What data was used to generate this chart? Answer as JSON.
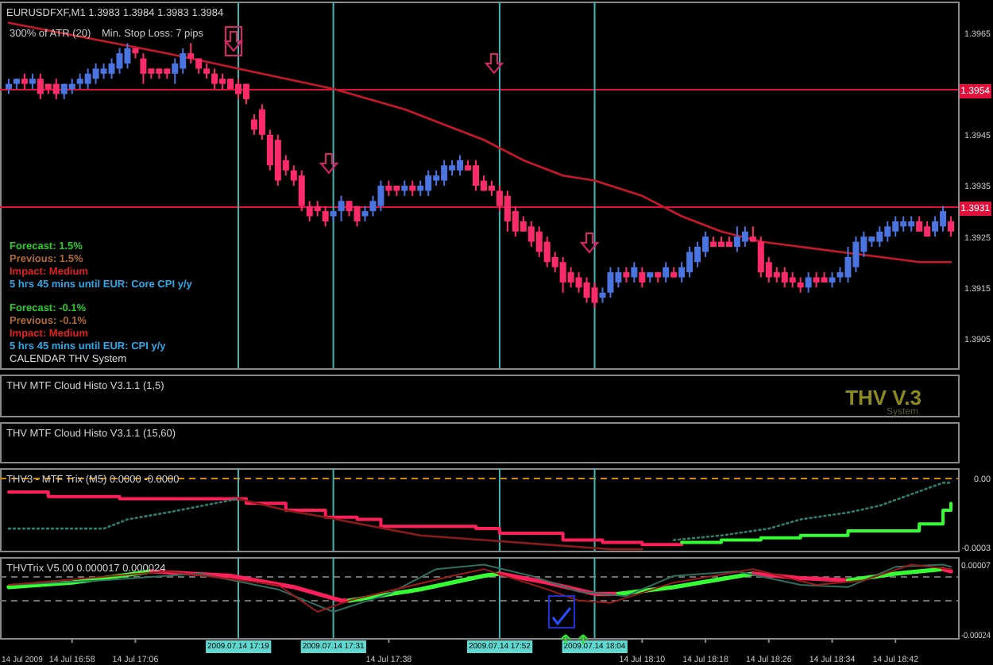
{
  "chart_data": [
    {
      "type": "candlestick",
      "title": "EURUSDFXF,M1  1.3983 1.3984 1.3983 1.3984",
      "tick_labels": "y",
      "annotations": [
        "300% of ATR (20)",
        "Min. Stop Loss:  7 pips",
        "Forecast: 1.5%",
        "Previous: 1.5%",
        "Impact: Medium",
        "5 hrs 45 mins until EUR: Core CPI y/y",
        "Forecast: -0.1%",
        "Previous: -0.1%",
        "Impact: Medium",
        "5 hrs 45 mins until EUR: CPI y/y",
        "CALENDAR THV System"
      ],
      "xlim": [
        "2009-07-14T16:49",
        "2009-07-14T18:50"
      ],
      "ylim": [
        1.3899,
        1.3971
      ],
      "yticks": [
        1.3965,
        1.3945,
        1.3935,
        1.3925,
        1.3915,
        1.3905
      ],
      "x": [
        "2009-07-14T16:50",
        "2009-07-14T16:51",
        "2009-07-14T16:52",
        "2009-07-14T16:53",
        "2009-07-14T16:54",
        "2009-07-14T16:55",
        "2009-07-14T16:56",
        "2009-07-14T16:57",
        "2009-07-14T16:58",
        "2009-07-14T16:59",
        "2009-07-14T17:00",
        "2009-07-14T17:01",
        "2009-07-14T17:02",
        "2009-07-14T17:03",
        "2009-07-14T17:04",
        "2009-07-14T17:05",
        "2009-07-14T17:06",
        "2009-07-14T17:07",
        "2009-07-14T17:08",
        "2009-07-14T17:09",
        "2009-07-14T17:10",
        "2009-07-14T17:11",
        "2009-07-14T17:12",
        "2009-07-14T17:13",
        "2009-07-14T17:14",
        "2009-07-14T17:15",
        "2009-07-14T17:16",
        "2009-07-14T17:17",
        "2009-07-14T17:18",
        "2009-07-14T17:19",
        "2009-07-14T17:20",
        "2009-07-14T17:21",
        "2009-07-14T17:22",
        "2009-07-14T17:23",
        "2009-07-14T17:24",
        "2009-07-14T17:25",
        "2009-07-14T17:26",
        "2009-07-14T17:27",
        "2009-07-14T17:28",
        "2009-07-14T17:29",
        "2009-07-14T17:30",
        "2009-07-14T17:31",
        "2009-07-14T17:32",
        "2009-07-14T17:33",
        "2009-07-14T17:34",
        "2009-07-14T17:35",
        "2009-07-14T17:36",
        "2009-07-14T17:37",
        "2009-07-14T17:38",
        "2009-07-14T17:39",
        "2009-07-14T17:40",
        "2009-07-14T17:41",
        "2009-07-14T17:42",
        "2009-07-14T17:43",
        "2009-07-14T17:44",
        "2009-07-14T17:45",
        "2009-07-14T17:46",
        "2009-07-14T17:47",
        "2009-07-14T17:48",
        "2009-07-14T17:49",
        "2009-07-14T17:50",
        "2009-07-14T17:51",
        "2009-07-14T17:52",
        "2009-07-14T17:53",
        "2009-07-14T17:54",
        "2009-07-14T17:55",
        "2009-07-14T17:56",
        "2009-07-14T17:57",
        "2009-07-14T17:58",
        "2009-07-14T17:59",
        "2009-07-14T18:00",
        "2009-07-14T18:01",
        "2009-07-14T18:02",
        "2009-07-14T18:03",
        "2009-07-14T18:04",
        "2009-07-14T18:05",
        "2009-07-14T18:06",
        "2009-07-14T18:07",
        "2009-07-14T18:08",
        "2009-07-14T18:09",
        "2009-07-14T18:10",
        "2009-07-14T18:11",
        "2009-07-14T18:12",
        "2009-07-14T18:13",
        "2009-07-14T18:14",
        "2009-07-14T18:15",
        "2009-07-14T18:16",
        "2009-07-14T18:17",
        "2009-07-14T18:18",
        "2009-07-14T18:19",
        "2009-07-14T18:20",
        "2009-07-14T18:21",
        "2009-07-14T18:22",
        "2009-07-14T18:23",
        "2009-07-14T18:24",
        "2009-07-14T18:25",
        "2009-07-14T18:26",
        "2009-07-14T18:27",
        "2009-07-14T18:28",
        "2009-07-14T18:29",
        "2009-07-14T18:30",
        "2009-07-14T18:31",
        "2009-07-14T18:32",
        "2009-07-14T18:33",
        "2009-07-14T18:34",
        "2009-07-14T18:35",
        "2009-07-14T18:36",
        "2009-07-14T18:37",
        "2009-07-14T18:38",
        "2009-07-14T18:39",
        "2009-07-14T18:40",
        "2009-07-14T18:41",
        "2009-07-14T18:42",
        "2009-07-14T18:43",
        "2009-07-14T18:44",
        "2009-07-14T18:45",
        "2009-07-14T18:46",
        "2009-07-14T18:47",
        "2009-07-14T18:48",
        "2009-07-14T18:49"
      ],
      "ohlc": [
        [
          1.3954,
          1.3956,
          1.3953,
          1.3955
        ],
        [
          1.3955,
          1.3956,
          1.3954,
          1.3956
        ],
        [
          1.3956,
          1.3957,
          1.3954,
          1.3955
        ],
        [
          1.3955,
          1.3957,
          1.3954,
          1.3956
        ],
        [
          1.3956,
          1.3957,
          1.3952,
          1.3953
        ],
        [
          1.3955,
          1.3955,
          1.3953,
          1.3954
        ],
        [
          1.3955,
          1.3956,
          1.3952,
          1.3953
        ],
        [
          1.3953,
          1.3955,
          1.3952,
          1.3955
        ],
        [
          1.3954,
          1.3956,
          1.3953,
          1.3955
        ],
        [
          1.3955,
          1.3957,
          1.3954,
          1.3956
        ],
        [
          1.3955,
          1.3958,
          1.3954,
          1.3957
        ],
        [
          1.3956,
          1.3959,
          1.3955,
          1.3958
        ],
        [
          1.3957,
          1.3959,
          1.3956,
          1.3958
        ],
        [
          1.3957,
          1.396,
          1.3956,
          1.3959
        ],
        [
          1.3958,
          1.3962,
          1.3957,
          1.3961
        ],
        [
          1.3959,
          1.3963,
          1.3958,
          1.3962
        ],
        [
          1.3962,
          1.3962,
          1.396,
          1.3961
        ],
        [
          1.396,
          1.3961,
          1.3955,
          1.3957
        ],
        [
          1.3958,
          1.3958,
          1.3956,
          1.3957
        ],
        [
          1.3958,
          1.3958,
          1.3956,
          1.3957
        ],
        [
          1.3958,
          1.3958,
          1.3956,
          1.3957
        ],
        [
          1.3957,
          1.396,
          1.3955,
          1.3959
        ],
        [
          1.3958,
          1.3962,
          1.3957,
          1.3961
        ],
        [
          1.3961,
          1.3963,
          1.3959,
          1.396
        ],
        [
          1.396,
          1.396,
          1.3957,
          1.3958
        ],
        [
          1.3958,
          1.3959,
          1.3956,
          1.3957
        ],
        [
          1.3957,
          1.3958,
          1.3954,
          1.3955
        ],
        [
          1.3956,
          1.3957,
          1.3954,
          1.3955
        ],
        [
          1.3956,
          1.3956,
          1.3954,
          1.3954
        ],
        [
          1.3955,
          1.3956,
          1.3952,
          1.3953
        ],
        [
          1.3955,
          1.3955,
          1.3951,
          1.3952
        ],
        [
          1.3948,
          1.3949,
          1.3945,
          1.3946
        ],
        [
          1.395,
          1.3951,
          1.3944,
          1.3945
        ],
        [
          1.3945,
          1.3946,
          1.3938,
          1.3939
        ],
        [
          1.3944,
          1.3945,
          1.3935,
          1.3936
        ],
        [
          1.394,
          1.3941,
          1.3937,
          1.3938
        ],
        [
          1.3938,
          1.3939,
          1.3935,
          1.3936
        ],
        [
          1.3937,
          1.3938,
          1.393,
          1.3931
        ],
        [
          1.3931,
          1.3932,
          1.3928,
          1.3929
        ],
        [
          1.3931,
          1.3932,
          1.3929,
          1.393
        ],
        [
          1.393,
          1.3931,
          1.3927,
          1.3928
        ],
        [
          1.3929,
          1.393,
          1.3928,
          1.393
        ],
        [
          1.393,
          1.3933,
          1.3928,
          1.3932
        ],
        [
          1.3932,
          1.3932,
          1.3929,
          1.393
        ],
        [
          1.3931,
          1.3931,
          1.3927,
          1.3928
        ],
        [
          1.3929,
          1.3931,
          1.3928,
          1.393
        ],
        [
          1.393,
          1.3933,
          1.3929,
          1.3932
        ],
        [
          1.3931,
          1.3936,
          1.393,
          1.3935
        ],
        [
          1.3935,
          1.3936,
          1.3933,
          1.3934
        ],
        [
          1.3935,
          1.3935,
          1.3933,
          1.3934
        ],
        [
          1.3934,
          1.3936,
          1.3933,
          1.3935
        ],
        [
          1.3935,
          1.3936,
          1.3933,
          1.3934
        ],
        [
          1.3934,
          1.3936,
          1.3933,
          1.3935
        ],
        [
          1.3934,
          1.3938,
          1.3933,
          1.3937
        ],
        [
          1.3936,
          1.3938,
          1.3935,
          1.3937
        ],
        [
          1.3936,
          1.394,
          1.3935,
          1.3939
        ],
        [
          1.3938,
          1.394,
          1.3937,
          1.3939
        ],
        [
          1.3938,
          1.3941,
          1.3937,
          1.394
        ],
        [
          1.3939,
          1.394,
          1.3938,
          1.3938
        ],
        [
          1.3939,
          1.394,
          1.3934,
          1.3935
        ],
        [
          1.3936,
          1.3937,
          1.3934,
          1.3934
        ],
        [
          1.3935,
          1.3936,
          1.3933,
          1.3934
        ],
        [
          1.3934,
          1.3935,
          1.393,
          1.3931
        ],
        [
          1.3933,
          1.3934,
          1.3926,
          1.3928
        ],
        [
          1.393,
          1.3931,
          1.3925,
          1.3926
        ],
        [
          1.3928,
          1.3929,
          1.3926,
          1.3926
        ],
        [
          1.3927,
          1.3928,
          1.3923,
          1.3924
        ],
        [
          1.3926,
          1.3927,
          1.3921,
          1.3922
        ],
        [
          1.3924,
          1.3925,
          1.3919,
          1.392
        ],
        [
          1.3921,
          1.3922,
          1.3918,
          1.3919
        ],
        [
          1.392,
          1.3921,
          1.3914,
          1.3916
        ],
        [
          1.3918,
          1.3919,
          1.3915,
          1.3916
        ],
        [
          1.3917,
          1.3918,
          1.3914,
          1.3915
        ],
        [
          1.3916,
          1.3917,
          1.3912,
          1.3913
        ],
        [
          1.3915,
          1.3916,
          1.3911,
          1.3912
        ],
        [
          1.3913,
          1.3915,
          1.3912,
          1.3914
        ],
        [
          1.3914,
          1.3919,
          1.3913,
          1.3918
        ],
        [
          1.3916,
          1.3919,
          1.3915,
          1.3918
        ],
        [
          1.3918,
          1.3919,
          1.3916,
          1.3917
        ],
        [
          1.3917,
          1.392,
          1.3916,
          1.3919
        ],
        [
          1.3918,
          1.3919,
          1.3915,
          1.3916
        ],
        [
          1.3917,
          1.3918,
          1.3916,
          1.3918
        ],
        [
          1.3918,
          1.3918,
          1.3916,
          1.3917
        ],
        [
          1.3917,
          1.392,
          1.3916,
          1.3919
        ],
        [
          1.3918,
          1.3919,
          1.3917,
          1.3917
        ],
        [
          1.3917,
          1.392,
          1.3916,
          1.3919
        ],
        [
          1.3918,
          1.3923,
          1.3917,
          1.3922
        ],
        [
          1.392,
          1.3924,
          1.3919,
          1.3923
        ],
        [
          1.3922,
          1.3926,
          1.3921,
          1.3925
        ],
        [
          1.3924,
          1.3925,
          1.3923,
          1.3923
        ],
        [
          1.3924,
          1.3925,
          1.3923,
          1.3923
        ],
        [
          1.3924,
          1.3925,
          1.3923,
          1.3923
        ],
        [
          1.3923,
          1.3927,
          1.3922,
          1.3925
        ],
        [
          1.3924,
          1.3927,
          1.3923,
          1.3926
        ],
        [
          1.3925,
          1.3927,
          1.3924,
          1.3924
        ],
        [
          1.3924,
          1.3925,
          1.3917,
          1.3918
        ],
        [
          1.392,
          1.3921,
          1.3916,
          1.3917
        ],
        [
          1.3918,
          1.3919,
          1.3916,
          1.3917
        ],
        [
          1.3918,
          1.3919,
          1.3915,
          1.3916
        ],
        [
          1.3917,
          1.3918,
          1.3915,
          1.3916
        ],
        [
          1.3916,
          1.3917,
          1.3914,
          1.3915
        ],
        [
          1.3915,
          1.3918,
          1.3914,
          1.3917
        ],
        [
          1.3917,
          1.3918,
          1.3915,
          1.3916
        ],
        [
          1.3917,
          1.3918,
          1.3916,
          1.3916
        ],
        [
          1.3916,
          1.3918,
          1.3915,
          1.3917
        ],
        [
          1.3917,
          1.3919,
          1.3916,
          1.3918
        ],
        [
          1.3917,
          1.3923,
          1.3916,
          1.3921
        ],
        [
          1.3919,
          1.3925,
          1.3918,
          1.3924
        ],
        [
          1.3922,
          1.3926,
          1.3921,
          1.3925
        ],
        [
          1.3924,
          1.3925,
          1.3923,
          1.3925
        ],
        [
          1.3924,
          1.3927,
          1.3923,
          1.3926
        ],
        [
          1.3925,
          1.3928,
          1.3924,
          1.3927
        ],
        [
          1.3926,
          1.3929,
          1.3925,
          1.3928
        ],
        [
          1.3927,
          1.3929,
          1.3926,
          1.3928
        ],
        [
          1.3927,
          1.3929,
          1.3926,
          1.3928
        ],
        [
          1.3928,
          1.3929,
          1.3926,
          1.3926
        ],
        [
          1.3927,
          1.3928,
          1.3925,
          1.3925
        ],
        [
          1.3926,
          1.3929,
          1.3925,
          1.3928
        ],
        [
          1.3927,
          1.3931,
          1.3926,
          1.393
        ],
        [
          1.3928,
          1.3929,
          1.3925,
          1.3926
        ]
      ],
      "series": [
        {
          "type": "line",
          "color": "#c8182a",
          "x": [
            "2009-07-14T16:50",
            "2009-07-14T17:00",
            "2009-07-14T17:10",
            "2009-07-14T17:19",
            "2009-07-14T17:25",
            "2009-07-14T17:31",
            "2009-07-14T17:40",
            "2009-07-14T17:50",
            "2009-07-14T17:55",
            "2009-07-14T18:00",
            "2009-07-14T18:04",
            "2009-07-14T18:10",
            "2009-07-14T18:15",
            "2009-07-14T18:20",
            "2009-07-14T18:25",
            "2009-07-14T18:30",
            "2009-07-14T18:35",
            "2009-07-14T18:40",
            "2009-07-14T18:45",
            "2009-07-14T18:49"
          ],
          "values": [
            1.3967,
            1.3964,
            1.3961,
            1.3958,
            1.3956,
            1.3954,
            1.395,
            1.3944,
            1.394,
            1.3937,
            1.3936,
            1.3933,
            1.3929,
            1.3926,
            1.3924,
            1.3923,
            1.3922,
            1.3921,
            1.392,
            1.392
          ]
        }
      ],
      "ref_lines": [
        {
          "axis": "y",
          "value": 1.3954,
          "label": "1.3954",
          "color": "#e0103a"
        },
        {
          "axis": "y",
          "value": 1.3931,
          "label": "1.3931",
          "color": "#e0103a"
        },
        {
          "axis": "x",
          "value": "2009-07-14T17:19",
          "color": "#3fb8b0"
        },
        {
          "axis": "x",
          "value": "2009-07-14T17:31",
          "color": "#3fb8b0"
        },
        {
          "axis": "x",
          "value": "2009-07-14T17:52",
          "color": "#3fb8b0"
        },
        {
          "axis": "x",
          "value": "2009-07-14T18:04",
          "color": "#3fb8b0"
        }
      ]
    },
    {
      "type": "other",
      "title": "THV MTF Cloud Histo V3.1.1 (1,5)",
      "annotations": [
        "THV V.3",
        "System"
      ]
    },
    {
      "type": "other",
      "title": "THV MTF Cloud Histo V3.1.1 (15,60)"
    },
    {
      "type": "line",
      "title": "THV3 - MTF Trix (M5) 0.0000 -0.0000",
      "tick_labels": "y",
      "xlim": [
        "2009-07-14T16:49",
        "2009-07-14T18:50"
      ],
      "ylim": [
        -0.00032,
        4e-05
      ],
      "yticks": [
        {
          "value": 0,
          "label": "0.00"
        },
        {
          "value": -0.0003,
          "label": "-0.0003"
        }
      ],
      "series": [
        {
          "type": "step",
          "color": "#ff1f5a",
          "x": [
            "2009-07-14T16:50",
            "2009-07-14T16:55",
            "2009-07-14T17:04",
            "2009-07-14T17:20",
            "2009-07-14T17:25",
            "2009-07-14T17:30",
            "2009-07-14T17:34",
            "2009-07-14T17:37",
            "2009-07-14T17:49",
            "2009-07-14T17:52",
            "2009-07-14T18:00",
            "2009-07-14T18:05",
            "2009-07-14T18:10",
            "2009-07-14T18:15"
          ],
          "values": [
            -6e-05,
            -8e-05,
            -9e-05,
            -0.00011,
            -0.00014,
            -0.00017,
            -0.00018,
            -0.00021,
            -0.00022,
            -0.00024,
            -0.00027,
            -0.00028,
            -0.00029,
            -0.00028
          ]
        },
        {
          "type": "step",
          "color": "#33ff33",
          "x": [
            "2009-07-14T18:15",
            "2009-07-14T18:20",
            "2009-07-14T18:25",
            "2009-07-14T18:30",
            "2009-07-14T18:36",
            "2009-07-14T18:45",
            "2009-07-14T18:48",
            "2009-07-14T18:49"
          ],
          "values": [
            -0.00028,
            -0.00027,
            -0.00026,
            -0.00025,
            -0.00023,
            -0.0002,
            -0.00014,
            -0.00011
          ]
        },
        {
          "type": "line",
          "color": "#2f7f6f",
          "line_style": "dotted",
          "x": [
            "2009-07-14T16:50",
            "2009-07-14T17:02",
            "2009-07-14T17:05",
            "2009-07-14T17:10",
            "2009-07-14T17:16",
            "2009-07-14T17:19",
            "2009-07-14T18:10",
            "2009-07-14T18:14",
            "2009-07-14T18:20",
            "2009-07-14T18:26",
            "2009-07-14T18:30",
            "2009-07-14T18:36",
            "2009-07-14T18:40",
            "2009-07-14T18:44",
            "2009-07-14T18:48",
            "2009-07-14T18:49"
          ],
          "values": [
            -0.00022,
            -0.00022,
            -0.00018,
            -0.00015,
            -0.00011,
            -9e-05,
            null,
            -0.00027,
            -0.00025,
            -0.00022,
            -0.00018,
            -0.00015,
            -0.00012,
            -7e-05,
            -2e-05,
            -2e-05
          ]
        },
        {
          "type": "line",
          "color": "#8b1a1a",
          "x": [
            "2009-07-14T17:19",
            "2009-07-14T17:25",
            "2009-07-14T17:30",
            "2009-07-14T17:42",
            "2009-07-14T17:50",
            "2009-07-14T17:58",
            "2009-07-14T18:06",
            "2009-07-14T18:10"
          ],
          "values": [
            -9e-05,
            -0.00014,
            -0.00017,
            -0.00025,
            -0.00027,
            -0.00029,
            -0.00031,
            -0.00031
          ]
        }
      ],
      "ref_lines": [
        {
          "axis": "y",
          "value": 0,
          "color": "#d08a00",
          "line_style": "dashed"
        },
        {
          "axis": "x",
          "value": "2009-07-14T17:19",
          "color": "#3fb8b0"
        },
        {
          "axis": "x",
          "value": "2009-07-14T17:31",
          "color": "#3fb8b0"
        },
        {
          "axis": "x",
          "value": "2009-07-14T17:52",
          "color": "#3fb8b0"
        },
        {
          "axis": "x",
          "value": "2009-07-14T18:04",
          "color": "#3fb8b0"
        }
      ]
    },
    {
      "type": "line",
      "title": "THVTrix V5.00 0.000017 0.000024",
      "annotations": [
        "14 Jul 2009"
      ],
      "xlim": [
        "2009-07-14T16:49",
        "2009-07-14T18:50"
      ],
      "ylim": [
        -0.00026,
        0.0001
      ],
      "yticks": [
        {
          "value": 7e-05,
          "label": "0.00007"
        },
        {
          "value": -0.00024,
          "label": "-0.00024"
        }
      ],
      "xticks": [
        {
          "value": "2009-07-14T16:58",
          "label": "14 Jul 16:58"
        },
        {
          "value": "2009-07-14T17:06",
          "label": "14 Jul 17:06"
        },
        {
          "value": "2009-07-14T17:38",
          "label": "14 Jul 17:38"
        },
        {
          "value": "2009-07-14T18:10",
          "label": "14 Jul 18:10"
        },
        {
          "value": "2009-07-14T18:18",
          "label": "14 Jul 18:18"
        },
        {
          "value": "2009-07-14T18:26",
          "label": "14 Jul 18:26"
        },
        {
          "value": "2009-07-14T18:34",
          "label": "14 Jul 18:34"
        },
        {
          "value": "2009-07-14T18:42",
          "label": "14 Jul 18:42"
        }
      ],
      "series": [
        {
          "type": "line",
          "color": "#33ff33",
          "x": [
            "2009-07-14T16:50",
            "2009-07-14T16:58",
            "2009-07-14T17:06",
            "2009-07-14T17:08"
          ],
          "values": [
            -3e-05,
            -1e-05,
            3e-05,
            4e-05
          ]
        },
        {
          "type": "line",
          "color": "#ff1f5a",
          "x": [
            "2009-07-14T17:08",
            "2009-07-14T17:18",
            "2009-07-14T17:26",
            "2009-07-14T17:32",
            "2009-07-14T17:33"
          ],
          "values": [
            4e-05,
            2e-05,
            -3e-05,
            -9e-05,
            -9e-05
          ]
        },
        {
          "type": "line",
          "color": "#33ff33",
          "x": [
            "2009-07-14T17:33",
            "2009-07-14T17:42",
            "2009-07-14T17:50",
            "2009-07-14T17:52"
          ],
          "values": [
            -9e-05,
            -4e-05,
            2e-05,
            3e-05
          ]
        },
        {
          "type": "line",
          "color": "#ff1f5a",
          "x": [
            "2009-07-14T17:52",
            "2009-07-14T17:58",
            "2009-07-14T18:04",
            "2009-07-14T18:07"
          ],
          "values": [
            3e-05,
            -1e-05,
            -6e-05,
            -6e-05
          ]
        },
        {
          "type": "line",
          "color": "#33ff33",
          "x": [
            "2009-07-14T18:07",
            "2009-07-14T18:14",
            "2009-07-14T18:24"
          ],
          "values": [
            -6e-05,
            -3e-05,
            3e-05
          ]
        },
        {
          "type": "line",
          "color": "#ff1f5a",
          "x": [
            "2009-07-14T18:24",
            "2009-07-14T18:30",
            "2009-07-14T18:36"
          ],
          "values": [
            3e-05,
            1e-05,
            0
          ]
        },
        {
          "type": "line",
          "color": "#33ff33",
          "x": [
            "2009-07-14T18:36",
            "2009-07-14T18:42",
            "2009-07-14T18:48"
          ],
          "values": [
            0,
            3e-05,
            5e-05
          ]
        },
        {
          "type": "line",
          "color": "#ff1f5a",
          "x": [
            "2009-07-14T18:48",
            "2009-07-14T18:49"
          ],
          "values": [
            5e-05,
            4e-05
          ]
        },
        {
          "type": "line",
          "color": "#2f6f5f",
          "x": [
            "2009-07-14T16:50",
            "2009-07-14T17:02",
            "2009-07-14T17:14",
            "2009-07-14T17:24",
            "2009-07-14T17:31",
            "2009-07-14T17:38",
            "2009-07-14T17:44",
            "2009-07-14T17:50",
            "2009-07-14T17:56",
            "2009-07-14T18:02",
            "2009-07-14T18:08",
            "2009-07-14T18:14",
            "2009-07-14T18:22",
            "2009-07-14T18:30",
            "2009-07-14T18:36",
            "2009-07-14T18:42",
            "2009-07-14T18:48",
            "2009-07-14T18:49"
          ],
          "values": [
            -2e-05,
            0,
            3e-05,
            -4e-05,
            -0.00014,
            -6e-05,
            5e-05,
            7e-05,
            2e-05,
            -5e-05,
            -7e-05,
            2e-05,
            4e-05,
            -2e-05,
            -3e-05,
            6e-05,
            7e-05,
            6e-05
          ]
        },
        {
          "type": "line",
          "color": "#9b1a1a",
          "x": [
            "2009-07-14T16:50",
            "2009-07-14T17:10",
            "2009-07-14T17:24",
            "2009-07-14T17:29",
            "2009-07-14T17:33",
            "2009-07-14T17:46",
            "2009-07-14T17:50",
            "2009-07-14T17:58",
            "2009-07-14T18:02",
            "2009-07-14T18:06",
            "2009-07-14T18:14",
            "2009-07-14T18:24",
            "2009-07-14T18:32",
            "2009-07-14T18:38",
            "2009-07-14T18:44",
            "2009-07-14T18:49"
          ],
          "values": [
            -2e-05,
            4e-05,
            -2e-05,
            -0.00014,
            -9e-05,
            2e-05,
            5e-05,
            -4e-05,
            -9e-05,
            -0.0001,
            -1e-05,
            5e-05,
            -2e-05,
            0,
            7e-05,
            5e-05
          ]
        }
      ],
      "ref_lines": [
        {
          "axis": "y",
          "value": 2e-05,
          "color": "#707070",
          "line_style": "dashed"
        },
        {
          "axis": "y",
          "value": -9e-05,
          "color": "#707070",
          "line_style": "dashed"
        },
        {
          "axis": "x",
          "value": "2009-07-14T17:19",
          "label": "2009.07.14 17:19",
          "color": "#3fb8b0"
        },
        {
          "axis": "x",
          "value": "2009-07-14T17:31",
          "label": "2009.07.14 17:31",
          "color": "#3fb8b0"
        },
        {
          "axis": "x",
          "value": "2009-07-14T17:52",
          "label": "2009.07.14 17:52",
          "color": "#3fb8b0"
        },
        {
          "axis": "x",
          "value": "2009-07-14T18:04",
          "label": "2009.07.14 18:04",
          "color": "#3fb8b0"
        }
      ]
    }
  ]
}
